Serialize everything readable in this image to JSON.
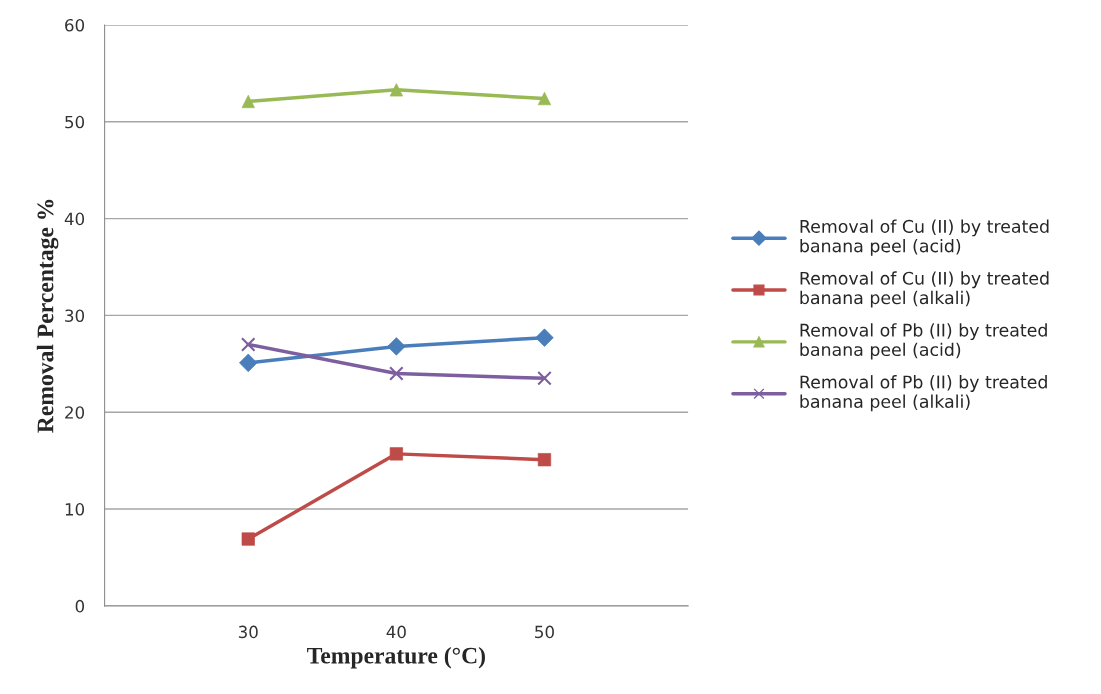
{
  "chart_data": {
    "type": "line",
    "xlabel": "Temperature (°C)",
    "ylabel": "Removal Percentage %",
    "categories": [
      "30",
      "40",
      "50"
    ],
    "series": [
      {
        "name": "Removal of Cu (II) by treated banana peel (acid)",
        "color": "#4a7ebb",
        "marker": "diamond",
        "values": [
          25.1,
          26.8,
          27.7
        ]
      },
      {
        "name": "Removal of Cu (II) by treated banana peel (alkali)",
        "color": "#be4b48",
        "marker": "square",
        "values": [
          6.9,
          15.7,
          15.1
        ]
      },
      {
        "name": "Removal of Pb (II) by treated banana peel (acid)",
        "color": "#98b954",
        "marker": "triangle",
        "values": [
          52.1,
          53.3,
          52.4
        ]
      },
      {
        "name": "Removal of Pb (II) by treated banana peel (alkali)",
        "color": "#7d5fa0",
        "marker": "cross",
        "values": [
          27.0,
          24.0,
          23.5
        ]
      }
    ],
    "ylim": [
      0,
      60
    ],
    "yticks": [
      0,
      10,
      20,
      30,
      40,
      50,
      60
    ],
    "grid": "y",
    "legend": "right"
  }
}
